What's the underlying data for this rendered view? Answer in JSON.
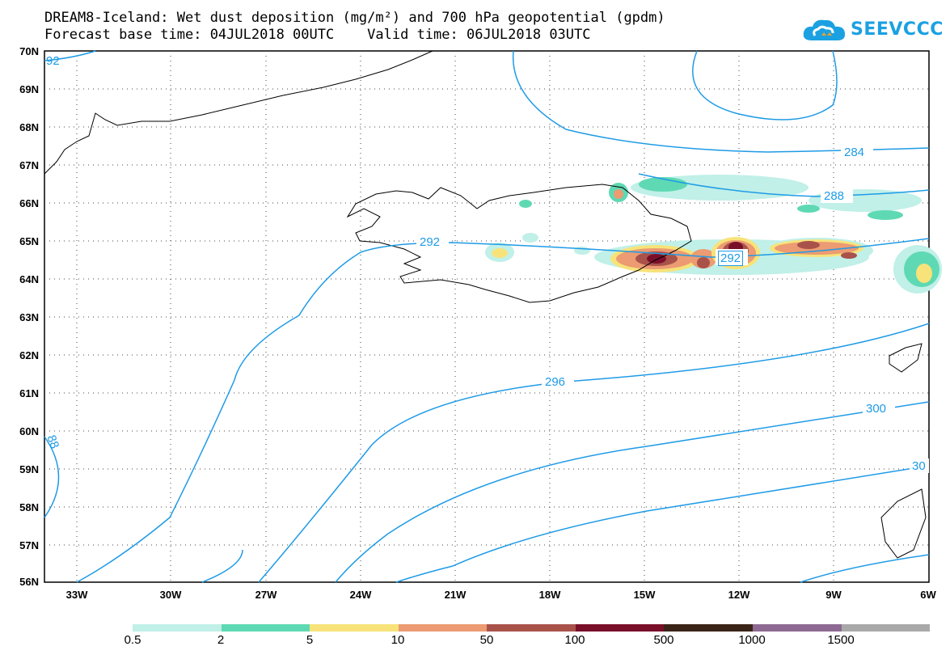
{
  "header": {
    "title_line1": "DREAM8-Iceland: Wet dust deposition (mg/m²) and 700 hPa geopotential (gpdm)",
    "title_line2": "Forecast base time: 04JUL2018 00UTC    Valid time: 06JUL2018 03UTC",
    "logo_text": "SEEVCCC"
  },
  "map": {
    "lat_labels": [
      "70N",
      "69N",
      "68N",
      "67N",
      "66N",
      "65N",
      "64N",
      "63N",
      "62N",
      "61N",
      "60N",
      "59N",
      "58N",
      "57N",
      "56N"
    ],
    "lon_labels": [
      "33W",
      "30W",
      "27W",
      "24W",
      "21W",
      "18W",
      "15W",
      "12W",
      "9W",
      "6W"
    ],
    "contour_labels": [
      "92",
      "284",
      "288",
      "292",
      "292",
      "296",
      "300",
      "30",
      "88"
    ],
    "contour_color": "#1e9be6",
    "coastline_color": "#000000"
  },
  "colorbar": {
    "labels": [
      "0.5",
      "2",
      "5",
      "10",
      "50",
      "100",
      "500",
      "1000",
      "1500"
    ],
    "colors": [
      "#c0f0e8",
      "#5fd9b3",
      "#f7e37a",
      "#ec9b72",
      "#a9524a",
      "#7a0f2a",
      "#3a2418",
      "#8e6a92",
      "#a9a9a9"
    ]
  }
}
